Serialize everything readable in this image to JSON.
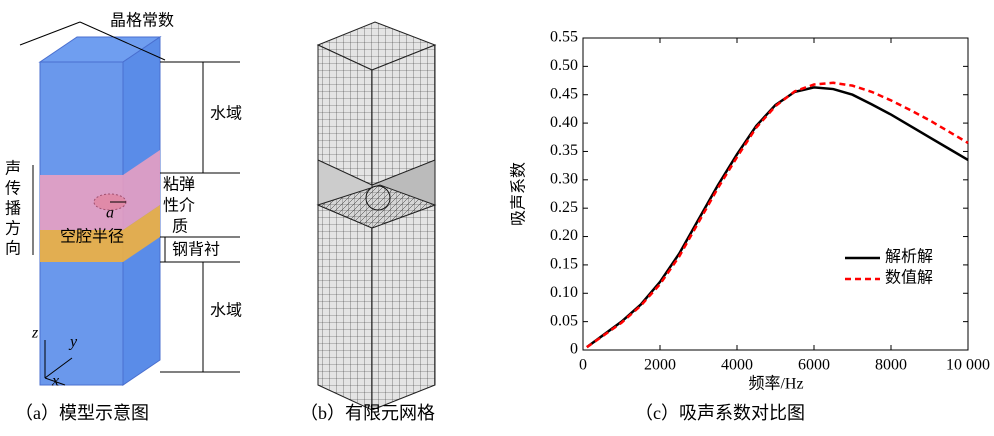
{
  "figure_a": {
    "lattice": "晶格常数",
    "water_top": "水域",
    "water_bottom": "水域",
    "viscoelastic": [
      "粘弹",
      "性介",
      "质"
    ],
    "direction": [
      "声",
      "传",
      "播",
      "方",
      "向"
    ],
    "cavity": "空腔半径",
    "radius_symbol": "a",
    "steel": "钢背衬",
    "axes": {
      "z": "z",
      "y": "y",
      "x": "x"
    },
    "caption": "（a）模型示意图"
  },
  "figure_b": {
    "caption": "（b）有限元网格"
  },
  "chart_data": {
    "type": "line",
    "caption": "（c）吸声系数对比图",
    "x_label": "频率/Hz",
    "y_label": "吸声系数",
    "x": [
      100,
      500,
      1000,
      1500,
      2000,
      2500,
      3000,
      3500,
      4000,
      4500,
      5000,
      5500,
      6000,
      6500,
      7000,
      7500,
      8000,
      8500,
      9000,
      9500,
      10000
    ],
    "series": [
      {
        "name": "解析解",
        "color": "#000000",
        "dash": false,
        "values": [
          0.005,
          0.025,
          0.05,
          0.08,
          0.12,
          0.17,
          0.23,
          0.29,
          0.345,
          0.395,
          0.432,
          0.455,
          0.463,
          0.46,
          0.45,
          0.433,
          0.415,
          0.395,
          0.375,
          0.355,
          0.335
        ]
      },
      {
        "name": "数值解",
        "color": "#ff0000",
        "dash": true,
        "values": [
          0.005,
          0.024,
          0.048,
          0.078,
          0.116,
          0.165,
          0.225,
          0.285,
          0.34,
          0.392,
          0.43,
          0.456,
          0.468,
          0.471,
          0.466,
          0.455,
          0.44,
          0.423,
          0.405,
          0.385,
          0.365
        ]
      }
    ],
    "xlim": [
      0,
      10000
    ],
    "ylim": [
      0,
      0.55
    ],
    "xticks": [
      0,
      2000,
      4000,
      6000,
      8000,
      {
        "value": 10000,
        "label": "10 000"
      }
    ],
    "yticks": [
      0,
      0.05,
      {
        "value": 0.1,
        "label": "0.10"
      },
      0.15,
      {
        "value": 0.2,
        "label": "0.20"
      },
      0.25,
      {
        "value": 0.3,
        "label": "0.30"
      },
      0.35,
      {
        "value": 0.4,
        "label": "0.40"
      },
      0.45,
      {
        "value": 0.5,
        "label": "0.50"
      },
      0.55
    ],
    "legend": "right"
  }
}
